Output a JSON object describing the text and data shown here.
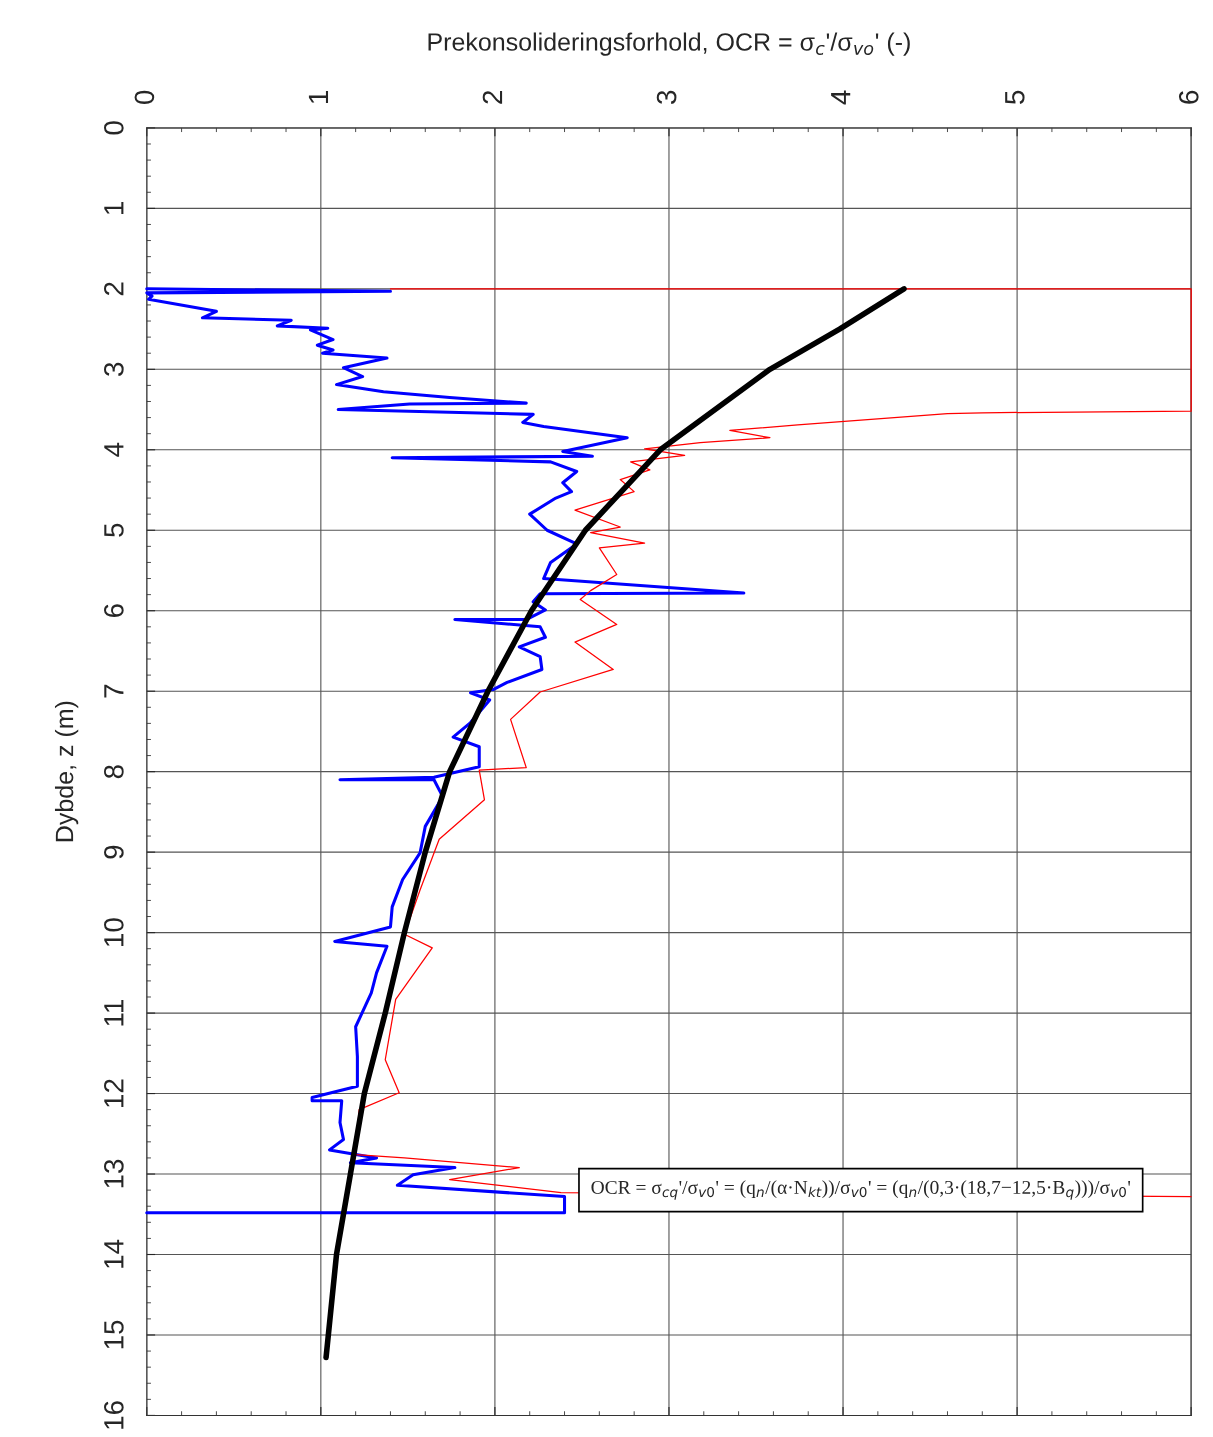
{
  "chart_data": {
    "type": "line",
    "orientation": "horizontal",
    "xlabel": "Prekonsolideringsforhold, OCR = σ$_{c}$'/σ$_{vo}$' (-)",
    "ylabel": "Dybde, z (m)",
    "xlim": [
      0,
      6
    ],
    "xticks": [
      0,
      1,
      2,
      3,
      4,
      5,
      6
    ],
    "ylim": [
      16,
      0
    ],
    "yticks": [
      0,
      1,
      2,
      3,
      4,
      5,
      6,
      7,
      8,
      9,
      10,
      11,
      12,
      13,
      14,
      15,
      16
    ],
    "grid": true,
    "marker": "none",
    "line_style": "solid",
    "series": [
      {
        "color": "#0000ff",
        "x": [
          2.0,
          2.03,
          2.05,
          2.09,
          2.13,
          2.28,
          2.36,
          2.39,
          2.46,
          2.49,
          2.51,
          2.63,
          2.7,
          2.76,
          2.8,
          2.86,
          2.98,
          3.09,
          3.19,
          3.28,
          3.35,
          3.42,
          3.43,
          3.5,
          3.56,
          3.66,
          3.71,
          3.85,
          4.02,
          4.08,
          4.1,
          4.15,
          4.27,
          4.41,
          4.52,
          4.6,
          4.8,
          5.0,
          5.17,
          5.4,
          5.6,
          5.78,
          5.79,
          5.89,
          5.99,
          6.11,
          6.11,
          6.2,
          6.33,
          6.45,
          6.57,
          6.73,
          6.89,
          6.98,
          7.02,
          7.11,
          7.39,
          7.57,
          7.69,
          7.94,
          8.07,
          8.1,
          8.1,
          8.31,
          8.68,
          9.01,
          9.34,
          9.68,
          9.93,
          10.11,
          10.17,
          10.5,
          10.75,
          11.17,
          11.54,
          11.91,
          12.05,
          12.09,
          12.09,
          12.36,
          12.57,
          12.7,
          12.8,
          12.86,
          12.92,
          13.01,
          13.14,
          13.28,
          13.48,
          13.48
        ],
        "values": [
          0,
          1.4,
          0,
          0.03,
          0.01,
          0.4,
          0.32,
          0.83,
          0.75,
          1.04,
          0.94,
          1.07,
          0.98,
          1.07,
          1.01,
          1.38,
          1.13,
          1.24,
          1.09,
          1.36,
          1.74,
          2.18,
          1.51,
          1.1,
          2.22,
          2.16,
          2.28,
          2.76,
          2.39,
          2.56,
          1.41,
          2.32,
          2.47,
          2.39,
          2.44,
          2.35,
          2.2,
          2.3,
          2.47,
          2.32,
          2.28,
          3.43,
          2.26,
          2.22,
          2.29,
          2.18,
          1.77,
          2.26,
          2.29,
          2.14,
          2.26,
          2.27,
          2.07,
          1.99,
          1.86,
          1.97,
          1.86,
          1.76,
          1.91,
          1.91,
          1.65,
          1.11,
          1.65,
          1.7,
          1.6,
          1.57,
          1.47,
          1.41,
          1.4,
          1.08,
          1.38,
          1.32,
          1.29,
          1.2,
          1.21,
          1.21,
          0.95,
          0.95,
          1.12,
          1.11,
          1.13,
          1.05,
          1.32,
          1.17,
          1.77,
          1.53,
          1.44,
          2.4,
          2.4,
          0
        ]
      },
      {
        "color": "#ff0000",
        "x": [
          2.0,
          2.0,
          3.52,
          3.54,
          3.55,
          3.69,
          3.76,
          3.85,
          3.91,
          3.99,
          4.07,
          4.15,
          4.25,
          4.37,
          4.52,
          4.75,
          4.96,
          5.03,
          5.16,
          5.22,
          5.55,
          5.75,
          5.86,
          6.17,
          6.39,
          6.73,
          7.01,
          7.35,
          7.95,
          7.98,
          8.35,
          8.84,
          9.47,
          10.02,
          10.19,
          10.83,
          11.58,
          11.99,
          12.2,
          12.76,
          12.8,
          12.92,
          13.07,
          13.23,
          13.28
        ],
        "values": [
          1.4,
          6,
          6,
          4.8,
          4.6,
          3.74,
          3.35,
          3.58,
          3.18,
          2.86,
          3.09,
          2.78,
          2.89,
          2.72,
          2.8,
          2.46,
          2.72,
          2.55,
          2.86,
          2.6,
          2.7,
          2.55,
          2.49,
          2.7,
          2.46,
          2.68,
          2.26,
          2.09,
          2.18,
          1.91,
          1.94,
          1.68,
          1.57,
          1.48,
          1.64,
          1.43,
          1.37,
          1.45,
          1.22,
          1.2,
          1.48,
          2.14,
          1.74,
          2.38,
          6
        ]
      },
      {
        "color": "#000000",
        "x": [
          2.0,
          2.5,
          3.0,
          4.0,
          5.0,
          6.0,
          7.0,
          8.0,
          9.0,
          10.0,
          11.0,
          12.0,
          13.0,
          14.0,
          15.28
        ],
        "values": [
          4.35,
          3.98,
          3.58,
          2.95,
          2.52,
          2.21,
          1.96,
          1.74,
          1.6,
          1.48,
          1.37,
          1.25,
          1.17,
          1.09,
          1.03
        ]
      }
    ],
    "annotations": [
      "OCR = σ$_{cq}$'/σ$_{v0}$' = (q$_{n}$/(α·N$_{kt}$))/σ$_{v0}$' = (q$_{n}$/(0,3·(18,7−12,5·B$_{q}$)))/σ$_{v0}$'"
    ]
  }
}
